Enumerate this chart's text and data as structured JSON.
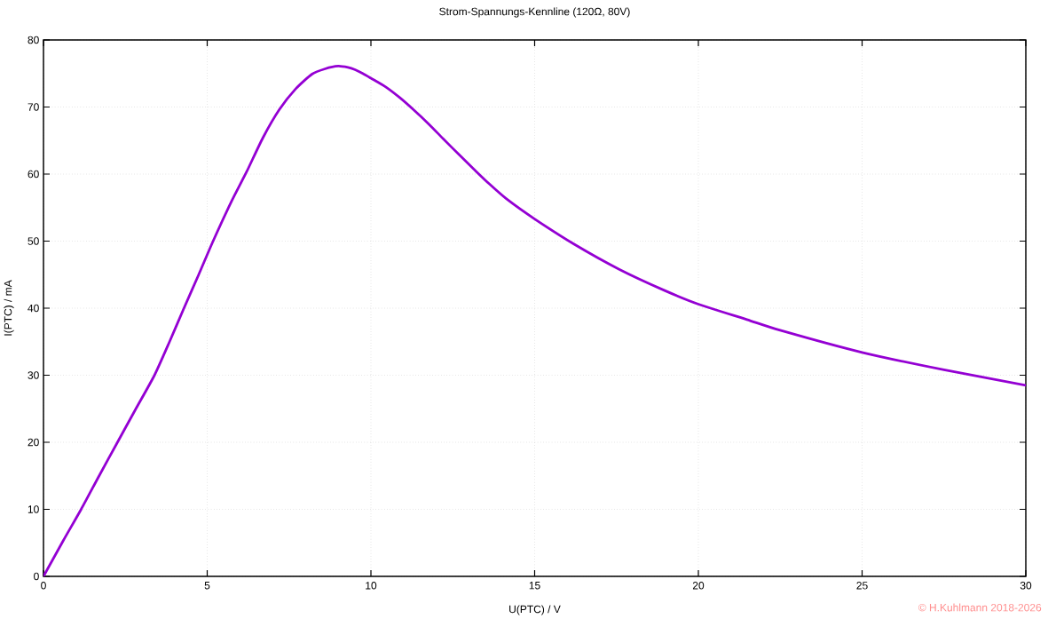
{
  "chart_data": {
    "type": "line",
    "title": "Strom-Spannungs-Kennline (120Ω, 80V)",
    "xlabel": "U(PTC) / V",
    "ylabel": "I(PTC) / mA",
    "x": [
      0,
      0.6,
      1.15,
      1.7,
      2.26,
      2.8,
      3.39,
      3.85,
      4.29,
      4.74,
      5.18,
      5.75,
      6.2,
      6.7,
      7.2,
      7.7,
      8.2,
      8.6,
      9.0,
      9.3,
      9.5,
      9.75,
      10,
      10.45,
      10.88,
      11.3,
      11.78,
      12.2,
      12.69,
      13.15,
      13.6,
      14.14,
      15,
      16.22,
      17.58,
      18.94,
      20,
      21.48,
      22.5,
      25,
      27.5,
      30
    ],
    "values": [
      0,
      5.3,
      10,
      15,
      20,
      24.8,
      30,
      35,
      40,
      45,
      50,
      56,
      60.3,
      65.4,
      69.6,
      72.7,
      74.9,
      75.7,
      76.1,
      75.9,
      75.6,
      75.0,
      74.3,
      73.0,
      71.4,
      69.6,
      67.4,
      65.3,
      62.9,
      60.7,
      58.6,
      56.3,
      53.3,
      49.5,
      45.8,
      42.7,
      40.6,
      38.3,
      36.7,
      33.4,
      30.8,
      28.5
    ],
    "color": "#9400d3",
    "xlim": [
      0,
      30
    ],
    "xticks": [
      0,
      5,
      10,
      15,
      20,
      25,
      30
    ],
    "ylim": [
      0,
      80
    ],
    "yticks": [
      0,
      10,
      20,
      30,
      40,
      50,
      60,
      70,
      80
    ],
    "grid": true,
    "marker": "none",
    "line_style": "solid",
    "annotations": [
      "© H.Kuhlmann 2018-2026"
    ]
  }
}
